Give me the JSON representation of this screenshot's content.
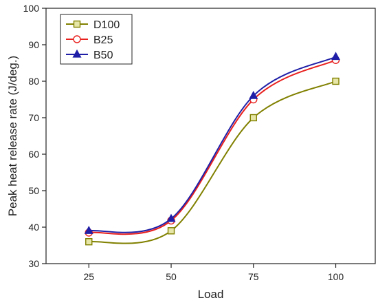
{
  "chart_data": {
    "type": "line",
    "title": "",
    "xlabel": "Load",
    "ylabel": "Peak heat release rate (J/deg.)",
    "x": [
      25,
      50,
      75,
      100
    ],
    "x_ticks": [
      "25",
      "50",
      "75",
      "100"
    ],
    "y_ticks": [
      "30",
      "40",
      "50",
      "60",
      "70",
      "80",
      "90",
      "100"
    ],
    "ylim": [
      30,
      100
    ],
    "xlim": [
      12,
      112
    ],
    "grid": false,
    "legend_position": "top-left",
    "series": [
      {
        "name": "D100",
        "values": [
          36,
          39,
          70,
          80
        ],
        "color": "#808000",
        "marker": "square"
      },
      {
        "name": "B25",
        "values": [
          38.5,
          41.8,
          75,
          85.8
        ],
        "color": "#e8201e",
        "marker": "circle"
      },
      {
        "name": "B50",
        "values": [
          39,
          42.3,
          76,
          86.7
        ],
        "color": "#1f1fa8",
        "marker": "triangle"
      }
    ]
  }
}
